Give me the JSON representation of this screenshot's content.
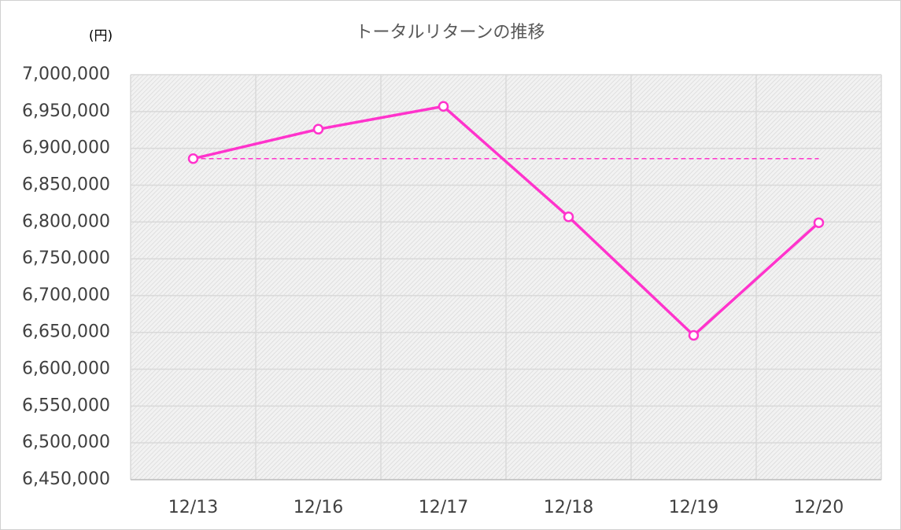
{
  "chart_data": {
    "type": "line",
    "title": "トータルリターンの推移",
    "y_label": "(円)",
    "categories": [
      "12/13",
      "12/16",
      "12/17",
      "12/18",
      "12/19",
      "12/20"
    ],
    "series": [
      {
        "color": "#ff33cc",
        "values": [
          6886000,
          6926000,
          6957000,
          6807000,
          6646000,
          6799000
        ]
      },
      {
        "color": "#ff33cc",
        "dashed": true,
        "markers": false,
        "values": [
          6886000,
          6886000,
          6886000,
          6886000,
          6886000,
          6886000
        ]
      }
    ],
    "ylim": [
      6450000,
      7000000
    ],
    "yticks": [
      {
        "value": 6450000,
        "label": "6,450,000"
      },
      {
        "value": 6500000,
        "label": "6,500,000"
      },
      {
        "value": 6550000,
        "label": "6,550,000"
      },
      {
        "value": 6600000,
        "label": "6,600,000"
      },
      {
        "value": 6650000,
        "label": "6,650,000"
      },
      {
        "value": 6700000,
        "label": "6,700,000"
      },
      {
        "value": 6750000,
        "label": "6,750,000"
      },
      {
        "value": 6800000,
        "label": "6,800,000"
      },
      {
        "value": 6850000,
        "label": "6,850,000"
      },
      {
        "value": 6900000,
        "label": "6,900,000"
      },
      {
        "value": 6950000,
        "label": "6,950,000"
      },
      {
        "value": 7000000,
        "label": "7,000,000"
      }
    ],
    "grid": true
  }
}
